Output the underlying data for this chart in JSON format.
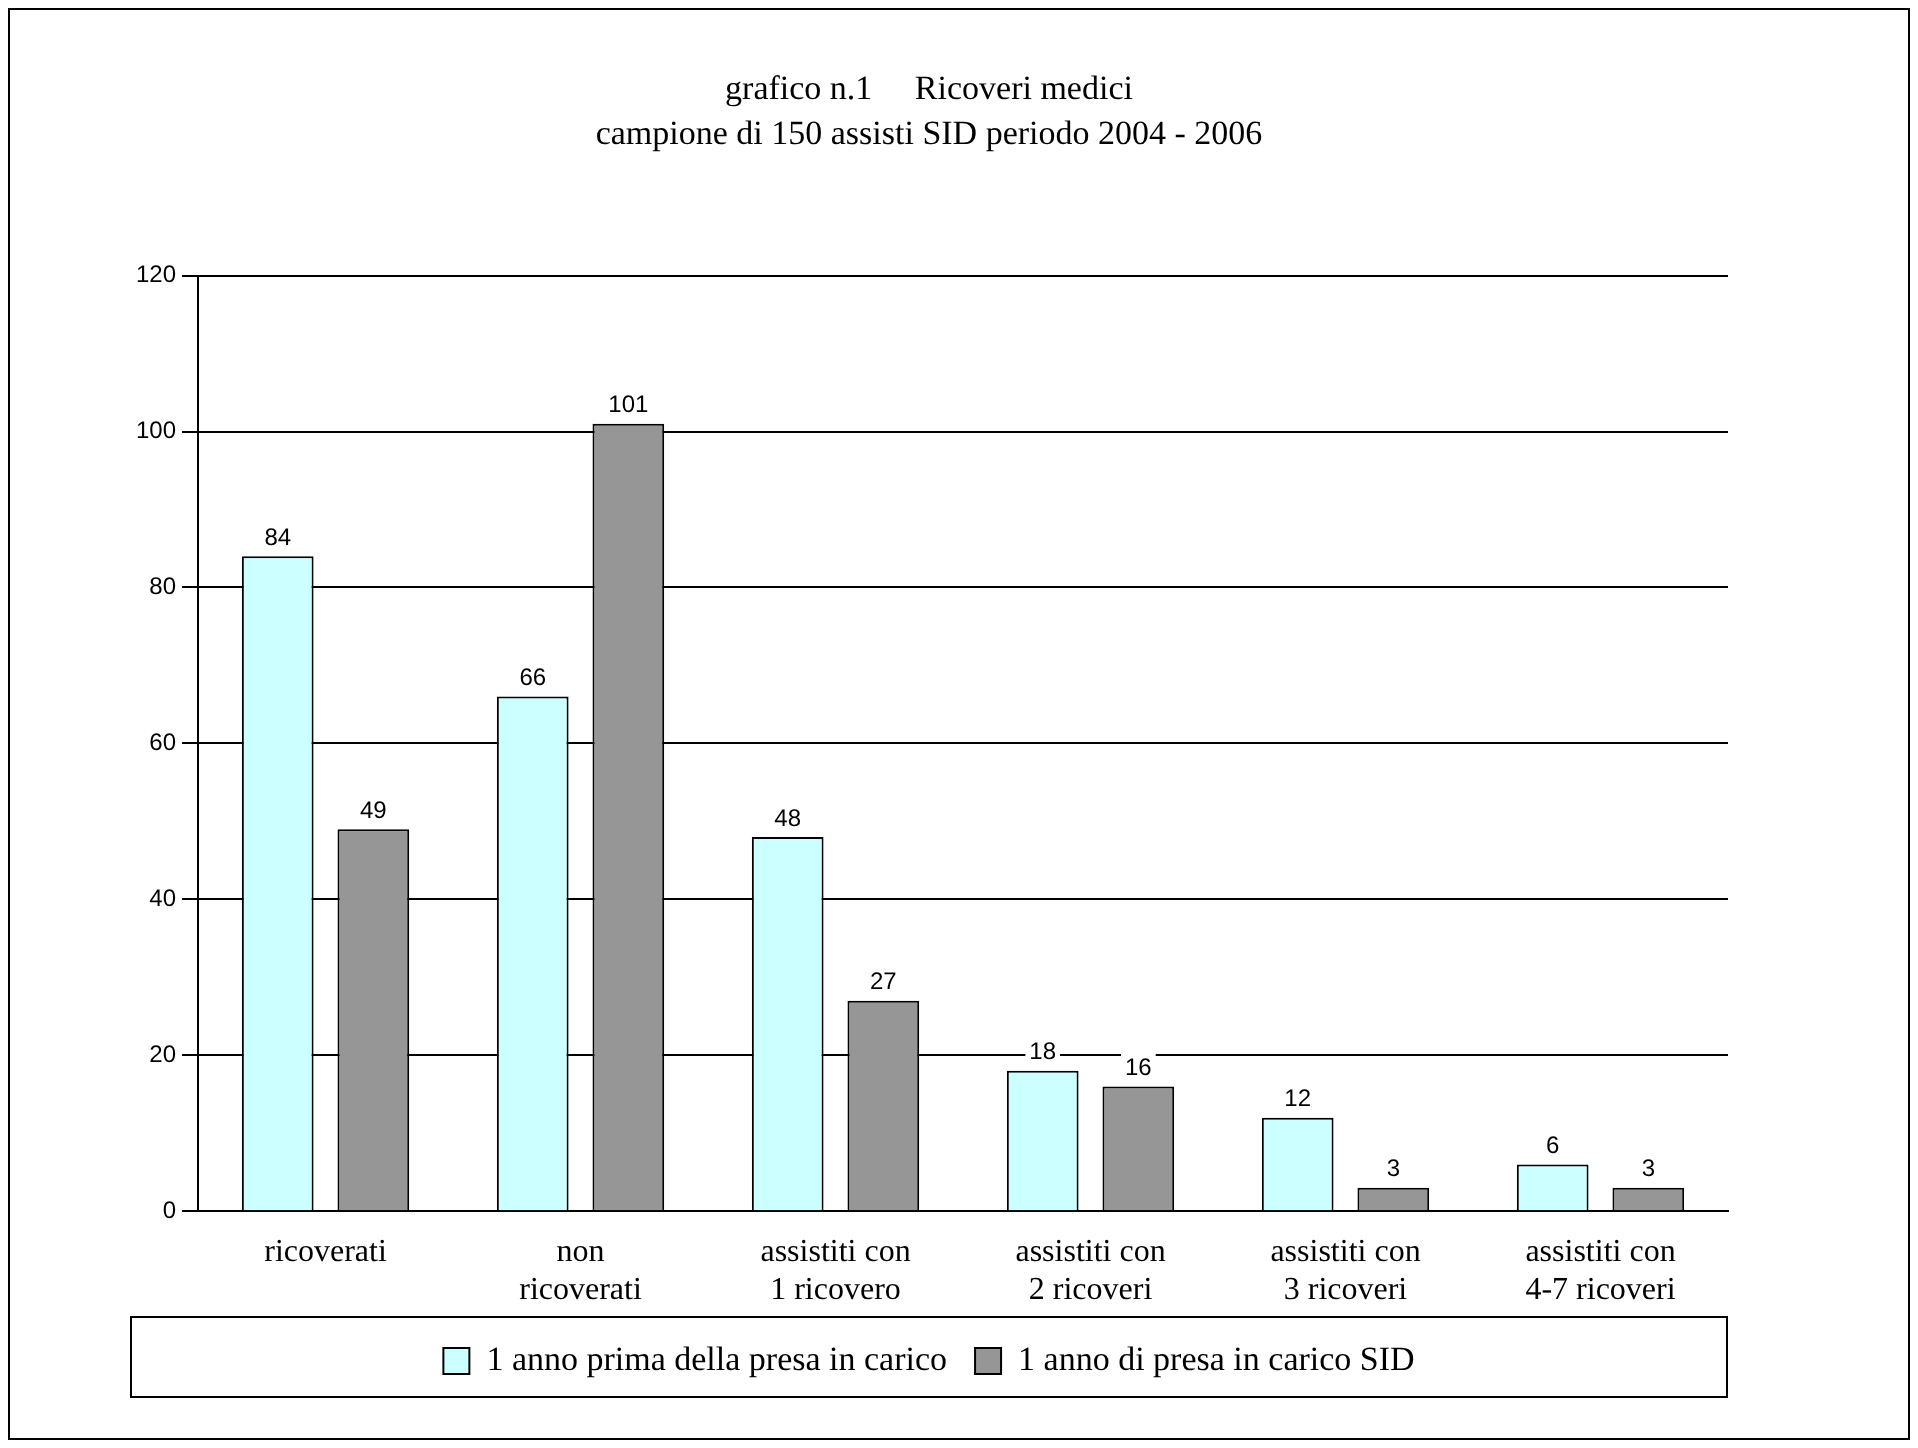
{
  "chart_data": {
    "type": "bar",
    "title": "grafico n.1     Ricoveri medici",
    "subtitle": "campione di 150 assisti SID periodo 2004 - 2006",
    "categories": [
      "ricoverati",
      "non ricoverati",
      "assistiti con 1 ricovero",
      "assistiti con 2 ricoveri",
      "assistiti con 3 ricoveri",
      "assistiti con 4-7 ricoveri"
    ],
    "series": [
      {
        "name": "1 anno prima della presa in carico",
        "color": "#ccffff",
        "values": [
          84,
          66,
          48,
          18,
          12,
          6
        ]
      },
      {
        "name": "1 anno di presa in carico SID",
        "color": "#969696",
        "values": [
          49,
          101,
          27,
          16,
          3,
          3
        ]
      }
    ],
    "ylim": [
      0,
      120
    ],
    "yticks": [
      0,
      20,
      40,
      60,
      80,
      100,
      120
    ],
    "grid": "y",
    "legend": "bottom",
    "data_labels": true
  }
}
